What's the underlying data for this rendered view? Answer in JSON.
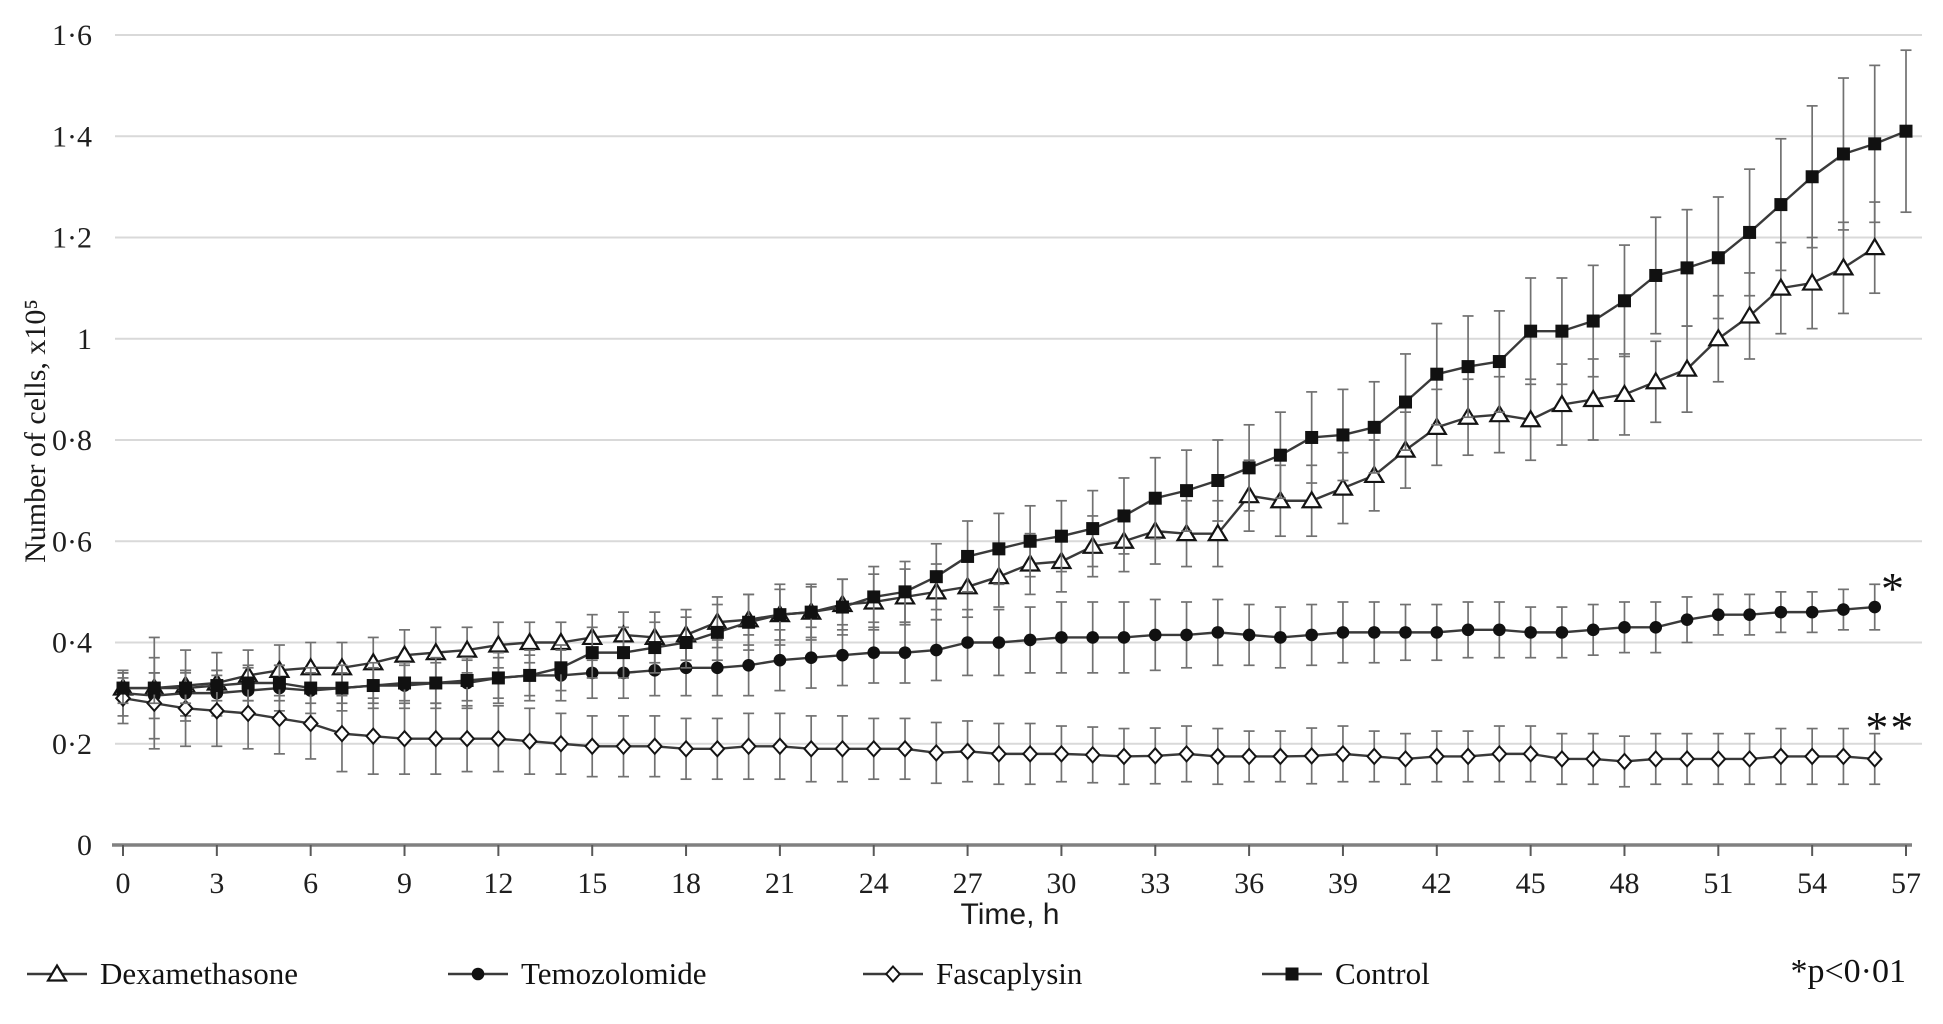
{
  "chart_data": {
    "type": "line",
    "title": "",
    "xlabel": "Time, h",
    "ylabel": "Number of cells, x10⁵",
    "xlim": [
      0,
      57
    ],
    "ylim": [
      0,
      1.6
    ],
    "grid": "horizontal",
    "grid_color": "#d9d9d9",
    "axis_color": "#808080",
    "line_color": "#3a3a3a",
    "error_bar_color": "#717171",
    "x_ticks": [
      0,
      3,
      6,
      9,
      12,
      15,
      18,
      21,
      24,
      27,
      30,
      33,
      36,
      39,
      42,
      45,
      48,
      51,
      54,
      57
    ],
    "y_ticks": [
      {
        "v": 0,
        "label": "0"
      },
      {
        "v": 0.2,
        "label": "0·2"
      },
      {
        "v": 0.4,
        "label": "0·4"
      },
      {
        "v": 0.6,
        "label": "0·6"
      },
      {
        "v": 0.8,
        "label": "0·8"
      },
      {
        "v": 1,
        "label": "1"
      },
      {
        "v": 1.2,
        "label": "1·2"
      },
      {
        "v": 1.4,
        "label": "1·4"
      },
      {
        "v": 1.6,
        "label": "1·6"
      }
    ],
    "hour_step": 1,
    "start_hour": 0,
    "series": [
      {
        "name": "Dexamethasone",
        "marker": "open-triangle",
        "values": [
          0.31,
          0.31,
          0.315,
          0.32,
          0.335,
          0.345,
          0.35,
          0.35,
          0.36,
          0.375,
          0.38,
          0.385,
          0.395,
          0.4,
          0.4,
          0.41,
          0.415,
          0.41,
          0.415,
          0.44,
          0.445,
          0.455,
          0.46,
          0.475,
          0.48,
          0.49,
          0.5,
          0.51,
          0.53,
          0.555,
          0.56,
          0.59,
          0.6,
          0.62,
          0.615,
          0.615,
          0.69,
          0.68,
          0.68,
          0.705,
          0.73,
          0.78,
          0.825,
          0.845,
          0.85,
          0.84,
          0.87,
          0.88,
          0.89,
          0.915,
          0.94,
          1.0,
          1.045,
          1.1,
          1.11,
          1.14,
          1.18
        ],
        "err": [
          0.02,
          0.1,
          0.07,
          0.06,
          0.05,
          0.05,
          0.05,
          0.05,
          0.05,
          0.05,
          0.05,
          0.045,
          0.045,
          0.04,
          0.04,
          0.045,
          0.045,
          0.05,
          0.05,
          0.05,
          0.05,
          0.05,
          0.05,
          0.05,
          0.055,
          0.055,
          0.055,
          0.06,
          0.06,
          0.06,
          0.06,
          0.06,
          0.06,
          0.065,
          0.065,
          0.065,
          0.07,
          0.07,
          0.07,
          0.07,
          0.07,
          0.075,
          0.075,
          0.075,
          0.075,
          0.08,
          0.08,
          0.08,
          0.08,
          0.08,
          0.085,
          0.085,
          0.085,
          0.09,
          0.09,
          0.09,
          0.09
        ]
      },
      {
        "name": "Temozolomide",
        "marker": "filled-circle",
        "annotation": "*",
        "values": [
          0.3,
          0.295,
          0.3,
          0.3,
          0.305,
          0.31,
          0.305,
          0.31,
          0.315,
          0.315,
          0.32,
          0.32,
          0.33,
          0.335,
          0.335,
          0.34,
          0.34,
          0.345,
          0.35,
          0.35,
          0.355,
          0.365,
          0.37,
          0.375,
          0.38,
          0.38,
          0.385,
          0.4,
          0.4,
          0.405,
          0.41,
          0.41,
          0.41,
          0.415,
          0.415,
          0.42,
          0.415,
          0.41,
          0.415,
          0.42,
          0.42,
          0.42,
          0.42,
          0.425,
          0.425,
          0.42,
          0.42,
          0.425,
          0.43,
          0.43,
          0.445,
          0.455,
          0.455,
          0.46,
          0.46,
          0.465,
          0.47
        ],
        "err": [
          0.045,
          0.045,
          0.045,
          0.045,
          0.045,
          0.045,
          0.045,
          0.045,
          0.045,
          0.045,
          0.05,
          0.05,
          0.05,
          0.05,
          0.05,
          0.05,
          0.05,
          0.05,
          0.055,
          0.055,
          0.06,
          0.06,
          0.06,
          0.06,
          0.06,
          0.06,
          0.06,
          0.065,
          0.065,
          0.065,
          0.07,
          0.07,
          0.07,
          0.07,
          0.065,
          0.065,
          0.06,
          0.06,
          0.06,
          0.06,
          0.06,
          0.055,
          0.055,
          0.055,
          0.055,
          0.05,
          0.05,
          0.05,
          0.05,
          0.05,
          0.045,
          0.04,
          0.04,
          0.04,
          0.04,
          0.04,
          0.045
        ]
      },
      {
        "name": "Fascaplysin",
        "marker": "open-diamond",
        "annotation": "**",
        "values": [
          0.29,
          0.28,
          0.27,
          0.265,
          0.26,
          0.25,
          0.24,
          0.22,
          0.215,
          0.21,
          0.21,
          0.21,
          0.21,
          0.205,
          0.2,
          0.195,
          0.195,
          0.195,
          0.19,
          0.19,
          0.195,
          0.195,
          0.19,
          0.19,
          0.19,
          0.19,
          0.182,
          0.185,
          0.18,
          0.18,
          0.18,
          0.178,
          0.175,
          0.176,
          0.18,
          0.175,
          0.175,
          0.175,
          0.176,
          0.18,
          0.175,
          0.17,
          0.175,
          0.175,
          0.18,
          0.18,
          0.17,
          0.17,
          0.165,
          0.17,
          0.17,
          0.17,
          0.17,
          0.175,
          0.175,
          0.175,
          0.17
        ],
        "err": [
          0.05,
          0.09,
          0.075,
          0.07,
          0.07,
          0.07,
          0.07,
          0.075,
          0.075,
          0.07,
          0.07,
          0.065,
          0.065,
          0.065,
          0.06,
          0.06,
          0.06,
          0.06,
          0.06,
          0.06,
          0.065,
          0.065,
          0.065,
          0.065,
          0.06,
          0.06,
          0.06,
          0.06,
          0.06,
          0.06,
          0.055,
          0.055,
          0.055,
          0.055,
          0.055,
          0.055,
          0.05,
          0.05,
          0.055,
          0.055,
          0.05,
          0.05,
          0.05,
          0.05,
          0.055,
          0.055,
          0.05,
          0.05,
          0.05,
          0.05,
          0.05,
          0.05,
          0.05,
          0.055,
          0.055,
          0.055,
          0.05
        ]
      },
      {
        "name": "Control",
        "marker": "filled-square",
        "values": [
          0.31,
          0.31,
          0.31,
          0.315,
          0.32,
          0.32,
          0.31,
          0.31,
          0.315,
          0.32,
          0.32,
          0.325,
          0.33,
          0.335,
          0.35,
          0.38,
          0.38,
          0.39,
          0.4,
          0.42,
          0.44,
          0.455,
          0.46,
          0.47,
          0.49,
          0.5,
          0.53,
          0.57,
          0.585,
          0.6,
          0.61,
          0.625,
          0.65,
          0.685,
          0.7,
          0.72,
          0.745,
          0.77,
          0.805,
          0.81,
          0.825,
          0.875,
          0.93,
          0.945,
          0.955,
          1.015,
          1.015,
          1.035,
          1.075,
          1.125,
          1.14,
          1.16,
          1.21,
          1.265,
          1.32,
          1.365,
          1.385,
          1.41
        ],
        "err": [
          0.03,
          0.03,
          0.03,
          0.03,
          0.035,
          0.035,
          0.03,
          0.03,
          0.035,
          0.035,
          0.04,
          0.04,
          0.04,
          0.04,
          0.045,
          0.05,
          0.05,
          0.05,
          0.05,
          0.055,
          0.055,
          0.06,
          0.055,
          0.055,
          0.06,
          0.06,
          0.065,
          0.07,
          0.07,
          0.07,
          0.07,
          0.075,
          0.075,
          0.08,
          0.08,
          0.08,
          0.085,
          0.085,
          0.09,
          0.09,
          0.09,
          0.095,
          0.1,
          0.1,
          0.1,
          0.105,
          0.105,
          0.11,
          0.11,
          0.115,
          0.115,
          0.12,
          0.125,
          0.13,
          0.14,
          0.15,
          0.155,
          0.16
        ]
      }
    ],
    "annotations": [
      {
        "text": "*",
        "hour": 56.6,
        "value": 0.52
      },
      {
        "text": "**",
        "hour": 56.5,
        "value": 0.245
      }
    ],
    "p_note": "*p<0·01"
  }
}
